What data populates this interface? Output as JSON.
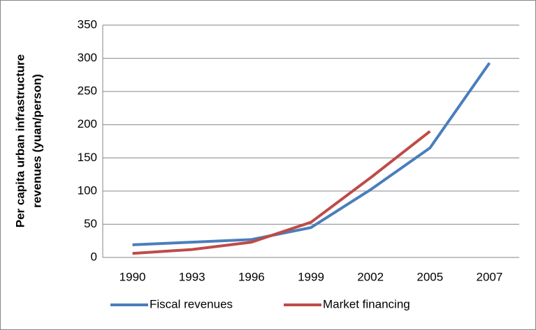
{
  "chart_data": {
    "type": "line",
    "y_label": [
      "Per capita urban infrastructure",
      "revenues (yuan/person)"
    ],
    "categories": [
      "1990",
      "1993",
      "1996",
      "1999",
      "2002",
      "2005",
      "2007"
    ],
    "series": [
      {
        "name": "Fiscal revenues",
        "color": "#4a7ebb",
        "values": [
          19,
          23,
          27,
          45,
          102,
          165,
          293
        ]
      },
      {
        "name": "Market financing",
        "color": "#be4b48",
        "values": [
          6,
          12,
          23,
          53,
          120,
          190,
          null
        ]
      }
    ],
    "ylim": [
      0,
      350
    ],
    "yticks": [
      0,
      50,
      100,
      150,
      200,
      250,
      300,
      350
    ],
    "grid": true,
    "legend": "bottom"
  }
}
